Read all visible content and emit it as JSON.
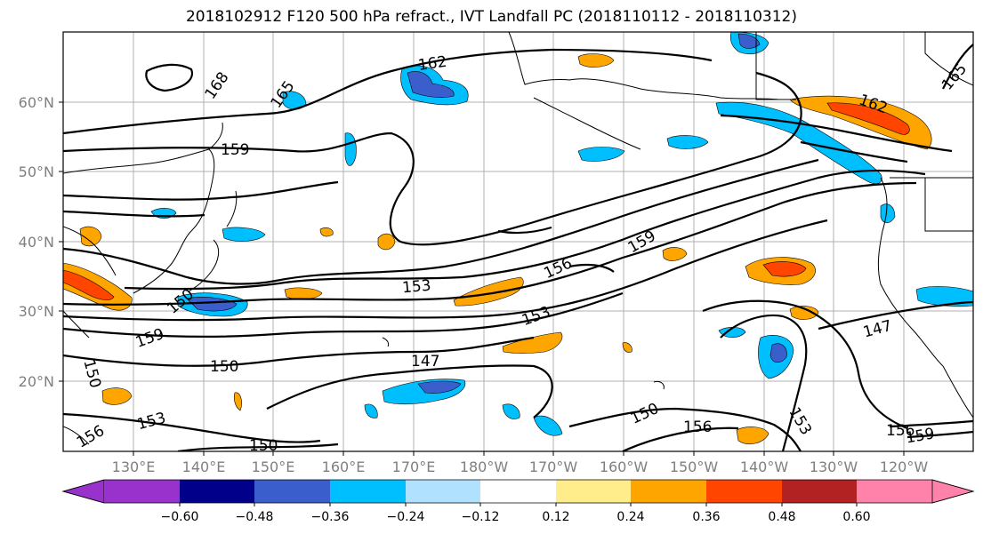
{
  "title": "2018102912 F120 500 hPa refract., IVT Landfall PC (2018110112 - 2018110312)",
  "map": {
    "lat_labels": [
      "60°N",
      "50°N",
      "40°N",
      "30°N",
      "20°N"
    ],
    "lon_labels": [
      "130°E",
      "140°E",
      "150°E",
      "160°E",
      "170°E",
      "180°W",
      "170°W",
      "160°W",
      "150°W",
      "140°W",
      "130°W",
      "120°W"
    ],
    "contour_labels": [
      "162",
      "168",
      "165",
      "159",
      "162",
      "165",
      "159",
      "156",
      "153",
      "150",
      "153",
      "159",
      "150",
      "147",
      "150",
      "147",
      "150",
      "156",
      "153",
      "156",
      "159",
      "150",
      "153",
      "156"
    ]
  },
  "colorbar": {
    "tick_labels": [
      "−0.60",
      "−0.48",
      "−0.36",
      "−0.24",
      "−0.12",
      "0.12",
      "0.24",
      "0.36",
      "0.48",
      "0.60"
    ],
    "colors": [
      "#9932cc",
      "#00008b",
      "#3a5fcd",
      "#00bfff",
      "#b0e2ff",
      "#ffffff",
      "#ffec8b",
      "#ffa500",
      "#ff4500",
      "#b22222",
      "#ff82ab"
    ]
  },
  "palette": {
    "neg_strong": "#3a5fcd",
    "neg_mid": "#00bfff",
    "neg_light": "#b0e2ff",
    "pos_light": "#ffec8b",
    "pos_mid": "#ffa500",
    "pos_strong": "#ff4500"
  }
}
